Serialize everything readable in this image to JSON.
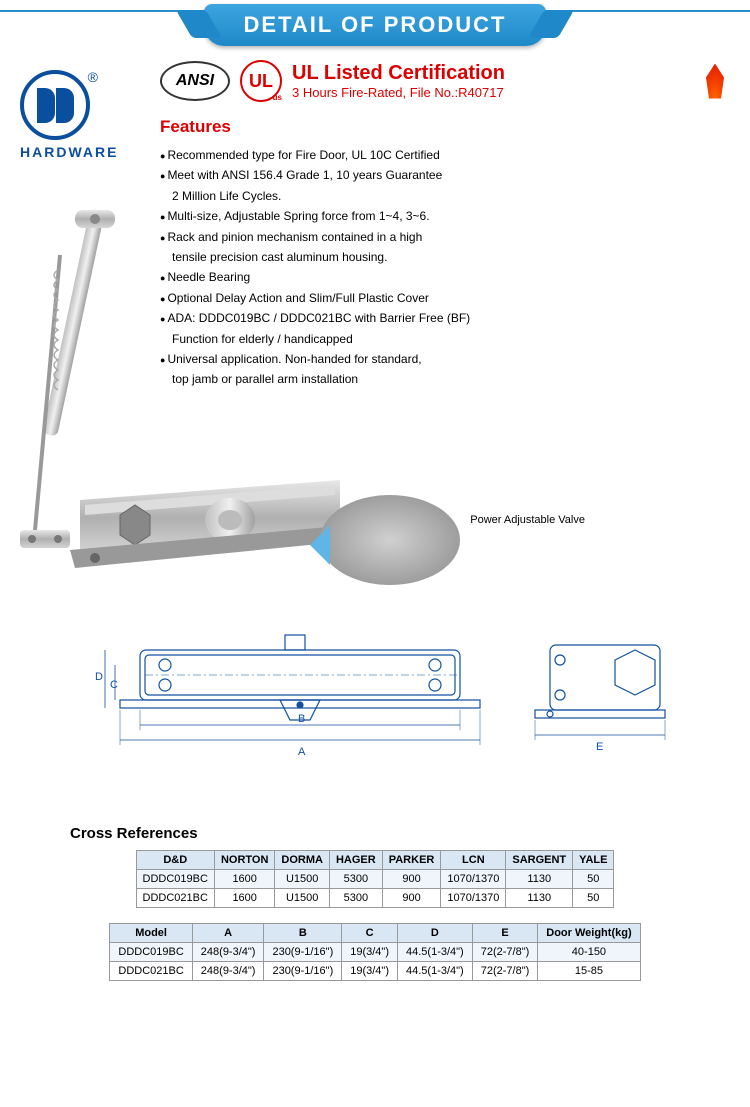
{
  "banner": {
    "title": "DETAIL OF PRODUCT"
  },
  "logo": {
    "text": "HARDWARE"
  },
  "cert": {
    "ansi": "ANSI",
    "ul": "UL",
    "title": "UL Listed Certification",
    "subtitle": "3 Hours Fire-Rated, File No.:R40717"
  },
  "features": {
    "title": "Features",
    "items": [
      "Recommended type for Fire Door, UL 10C Certified",
      "Meet with ANSI 156.4 Grade 1, 10 years Guarantee",
      "2 Million Life Cycles.",
      "Multi-size, Adjustable Spring force from 1~4, 3~6.",
      "Rack and pinion mechanism contained in a high",
      "tensile precision cast aluminum housing.",
      "Needle Bearing",
      "Optional Delay Action and Slim/Full Plastic Cover",
      "ADA: DDDC019BC / DDDC021BC with Barrier Free (BF)",
      "Function for elderly / handicapped",
      "Universal application. Non-handed for standard,",
      "top jamb or parallel arm installation"
    ],
    "indent_indices": [
      2,
      5,
      9,
      11
    ]
  },
  "callout": {
    "label": "Power Adjustable Valve"
  },
  "cross_ref": {
    "title": "Cross References",
    "headers": [
      "D&D",
      "NORTON",
      "DORMA",
      "HAGER",
      "PARKER",
      "LCN",
      "SARGENT",
      "YALE"
    ],
    "rows": [
      [
        "DDDC019BC",
        "1600",
        "U1500",
        "5300",
        "900",
        "1070/1370",
        "1130",
        "50"
      ],
      [
        "DDDC021BC",
        "1600",
        "U1500",
        "5300",
        "900",
        "1070/1370",
        "1130",
        "50"
      ]
    ]
  },
  "dims": {
    "headers": [
      "Model",
      "A",
      "B",
      "C",
      "D",
      "E",
      "Door Weight(kg)"
    ],
    "rows": [
      [
        "DDDC019BC",
        "248(9-3/4\")",
        "230(9-1/16\")",
        "19(3/4\")",
        "44.5(1-3/4\")",
        "72(2-7/8\")",
        "40-150"
      ],
      [
        "DDDC021BC",
        "248(9-3/4\")",
        "230(9-1/16\")",
        "19(3/4\")",
        "44.5(1-3/4\")",
        "72(2-7/8\")",
        "15-85"
      ]
    ]
  },
  "diagram": {
    "labels": {
      "a": "A",
      "b": "B",
      "c": "C",
      "d": "D",
      "e": "E"
    },
    "stroke": "#1050a0",
    "stroke_width": 1.5
  }
}
